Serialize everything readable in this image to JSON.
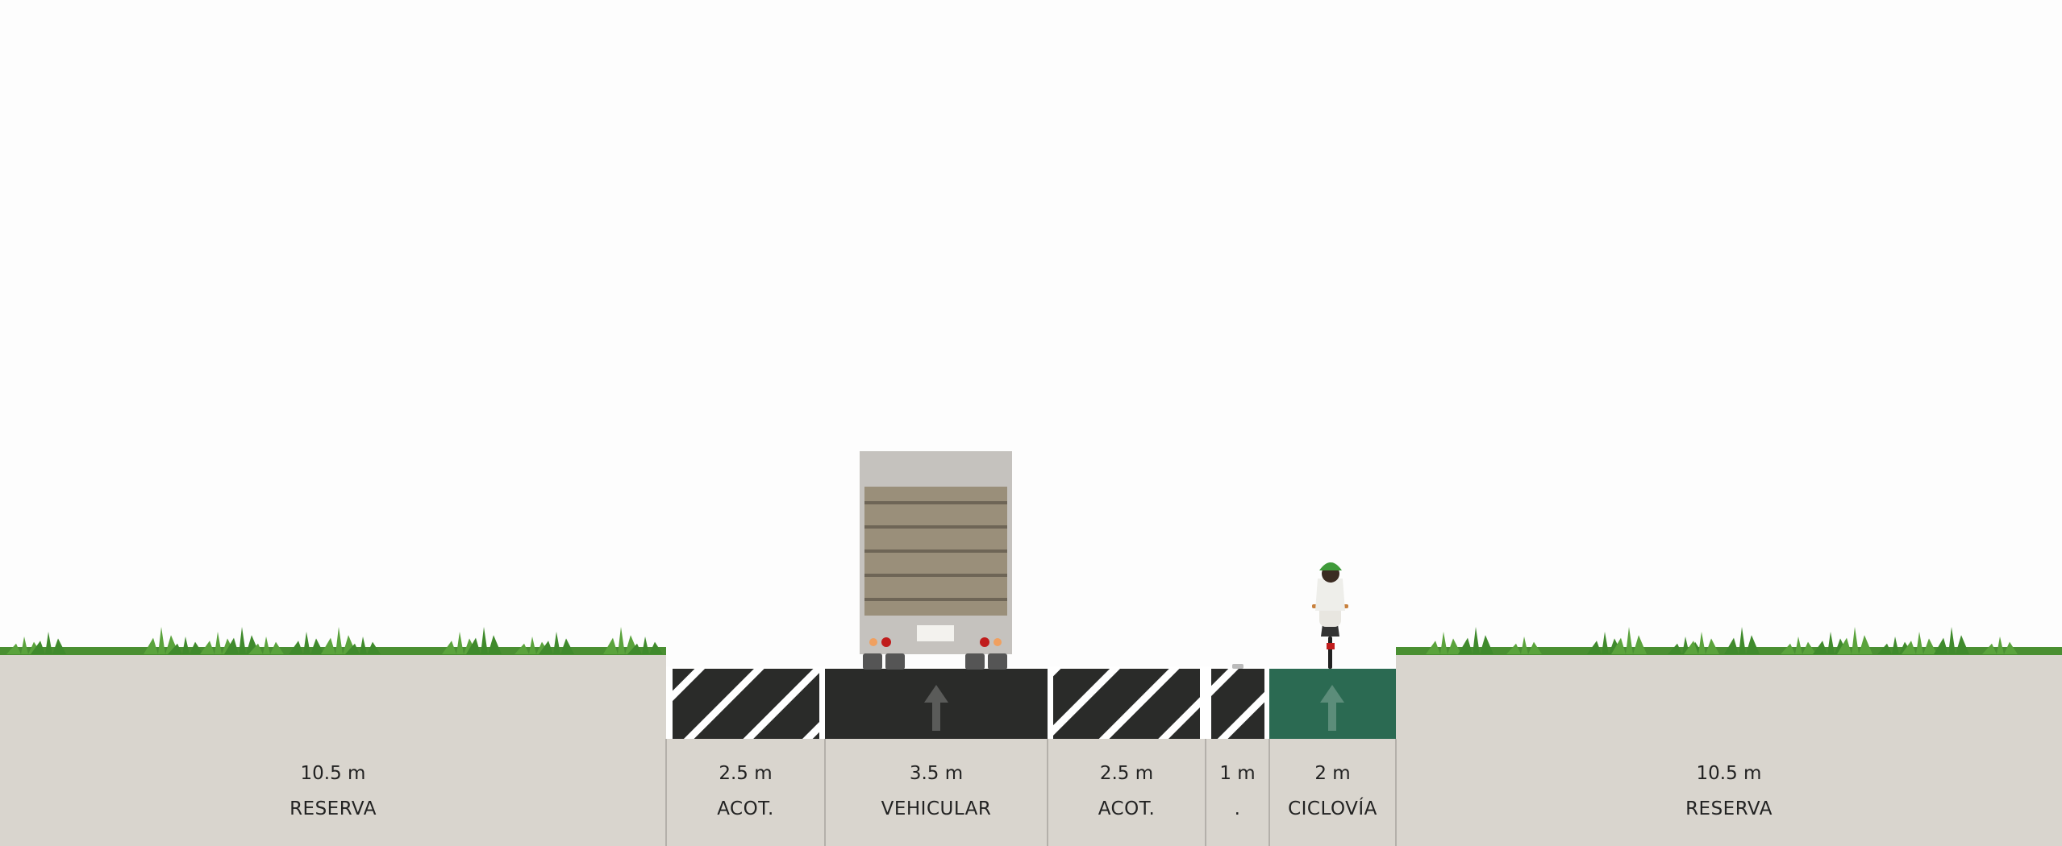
{
  "segments": [
    {
      "width_label": "10.5 m",
      "name": "RESERVA",
      "kind": "reserve",
      "width_m": 10.5
    },
    {
      "width_label": "2.5 m",
      "name": "ACOT.",
      "kind": "hatched",
      "width_m": 2.5
    },
    {
      "width_label": "3.5 m",
      "name": "VEHICULAR",
      "kind": "vehicle-lane",
      "width_m": 3.5
    },
    {
      "width_label": "2.5 m",
      "name": "ACOT.",
      "kind": "hatched",
      "width_m": 2.5
    },
    {
      "width_label": "1 m",
      "name": ".",
      "kind": "hatched",
      "width_m": 1
    },
    {
      "width_label": "2 m",
      "name": "CICLOVÍA",
      "kind": "bike-lane",
      "width_m": 2
    },
    {
      "width_label": "10.5 m",
      "name": "RESERVA",
      "kind": "reserve",
      "width_m": 10.5
    }
  ],
  "colors": {
    "sky": "#fdfdfd",
    "ground": "#d9d5ce",
    "asphalt": "#2a2b29",
    "bike_lane": "#2b6a52",
    "grass": "#4a8f32",
    "divider": "#a8a49e"
  }
}
